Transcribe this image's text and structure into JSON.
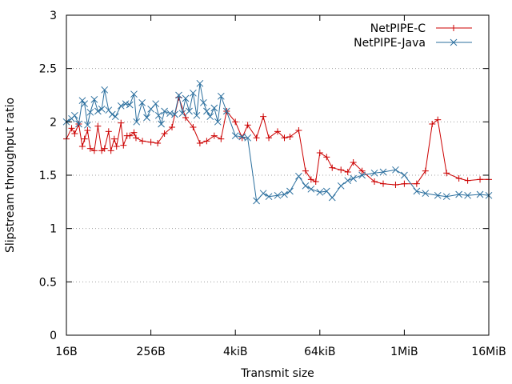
{
  "chart_data": {
    "type": "line",
    "title": "",
    "xlabel": "Transmit size",
    "ylabel": "Slipstream throughput ratio",
    "x_scale": "log2",
    "x_range_bytes": [
      16,
      16777216
    ],
    "ylim": [
      0,
      3
    ],
    "x_ticks": [
      {
        "value": 16,
        "label": "16B"
      },
      {
        "value": 256,
        "label": "256B"
      },
      {
        "value": 4096,
        "label": "4kiB"
      },
      {
        "value": 65536,
        "label": "64kiB"
      },
      {
        "value": 1048576,
        "label": "1MiB"
      },
      {
        "value": 16777216,
        "label": "16MiB"
      }
    ],
    "y_ticks": [
      {
        "value": 0,
        "label": "0"
      },
      {
        "value": 0.5,
        "label": "0.5"
      },
      {
        "value": 1,
        "label": "1"
      },
      {
        "value": 1.5,
        "label": "1.5"
      },
      {
        "value": 2,
        "label": "2"
      },
      {
        "value": 2.5,
        "label": "2.5"
      },
      {
        "value": 3,
        "label": "3"
      }
    ],
    "grid": true,
    "legend_position": "top-right",
    "series": [
      {
        "name": "NetPIPE-C",
        "color": "#cc0000",
        "marker": "plus",
        "points": [
          [
            16,
            1.84
          ],
          [
            19,
            1.94
          ],
          [
            21,
            1.89
          ],
          [
            24,
            1.98
          ],
          [
            27,
            1.77
          ],
          [
            29,
            1.84
          ],
          [
            32,
            1.92
          ],
          [
            35,
            1.75
          ],
          [
            40,
            1.73
          ],
          [
            45,
            1.96
          ],
          [
            51,
            1.73
          ],
          [
            56,
            1.75
          ],
          [
            64,
            1.91
          ],
          [
            69,
            1.73
          ],
          [
            77,
            1.84
          ],
          [
            83,
            1.77
          ],
          [
            96,
            1.99
          ],
          [
            104,
            1.78
          ],
          [
            117,
            1.87
          ],
          [
            128,
            1.87
          ],
          [
            147,
            1.9
          ],
          [
            157,
            1.85
          ],
          [
            194,
            1.82
          ],
          [
            256,
            1.81
          ],
          [
            320,
            1.8
          ],
          [
            400,
            1.89
          ],
          [
            512,
            1.95
          ],
          [
            640,
            2.23
          ],
          [
            800,
            2.04
          ],
          [
            1024,
            1.95
          ],
          [
            1280,
            1.8
          ],
          [
            1600,
            1.82
          ],
          [
            2048,
            1.87
          ],
          [
            2560,
            1.84
          ],
          [
            3072,
            2.1
          ],
          [
            4096,
            2.0
          ],
          [
            5120,
            1.85
          ],
          [
            6144,
            1.97
          ],
          [
            8192,
            1.85
          ],
          [
            10240,
            2.05
          ],
          [
            12288,
            1.85
          ],
          [
            16384,
            1.91
          ],
          [
            20480,
            1.85
          ],
          [
            24576,
            1.86
          ],
          [
            32768,
            1.92
          ],
          [
            40960,
            1.54
          ],
          [
            49152,
            1.46
          ],
          [
            57344,
            1.44
          ],
          [
            65536,
            1.71
          ],
          [
            81920,
            1.67
          ],
          [
            98304,
            1.57
          ],
          [
            131072,
            1.55
          ],
          [
            163840,
            1.53
          ],
          [
            196608,
            1.62
          ],
          [
            262144,
            1.54
          ],
          [
            393216,
            1.44
          ],
          [
            524288,
            1.42
          ],
          [
            786432,
            1.41
          ],
          [
            1048576,
            1.42
          ],
          [
            1572864,
            1.42
          ],
          [
            2097152,
            1.54
          ],
          [
            2621440,
            1.98
          ],
          [
            3145728,
            2.02
          ],
          [
            4194304,
            1.52
          ],
          [
            6291456,
            1.47
          ],
          [
            8388608,
            1.45
          ],
          [
            12582912,
            1.46
          ],
          [
            16777216,
            1.46
          ]
        ]
      },
      {
        "name": "NetPIPE-Java",
        "color": "#2b6f9e",
        "marker": "x",
        "points": [
          [
            16,
            2.0
          ],
          [
            19,
            2.03
          ],
          [
            21,
            2.06
          ],
          [
            24,
            1.98
          ],
          [
            27,
            2.2
          ],
          [
            29,
            2.17
          ],
          [
            32,
            1.97
          ],
          [
            35,
            2.09
          ],
          [
            40,
            2.21
          ],
          [
            45,
            2.1
          ],
          [
            51,
            2.12
          ],
          [
            56,
            2.3
          ],
          [
            64,
            2.11
          ],
          [
            72,
            2.07
          ],
          [
            80,
            2.05
          ],
          [
            96,
            2.15
          ],
          [
            112,
            2.17
          ],
          [
            128,
            2.16
          ],
          [
            147,
            2.26
          ],
          [
            160,
            2.0
          ],
          [
            192,
            2.18
          ],
          [
            224,
            2.04
          ],
          [
            256,
            2.12
          ],
          [
            300,
            2.17
          ],
          [
            330,
            2.06
          ],
          [
            360,
            1.98
          ],
          [
            400,
            2.1
          ],
          [
            480,
            2.08
          ],
          [
            560,
            2.07
          ],
          [
            640,
            2.25
          ],
          [
            720,
            2.08
          ],
          [
            800,
            2.22
          ],
          [
            900,
            2.1
          ],
          [
            1024,
            2.27
          ],
          [
            1152,
            2.06
          ],
          [
            1280,
            2.36
          ],
          [
            1440,
            2.18
          ],
          [
            1600,
            2.1
          ],
          [
            1792,
            2.05
          ],
          [
            2048,
            2.13
          ],
          [
            2304,
            2.0
          ],
          [
            2560,
            2.24
          ],
          [
            3072,
            2.1
          ],
          [
            4096,
            1.87
          ],
          [
            5120,
            1.86
          ],
          [
            6144,
            1.85
          ],
          [
            8192,
            1.26
          ],
          [
            10240,
            1.33
          ],
          [
            12288,
            1.3
          ],
          [
            16384,
            1.31
          ],
          [
            20480,
            1.32
          ],
          [
            24576,
            1.35
          ],
          [
            32768,
            1.49
          ],
          [
            40960,
            1.4
          ],
          [
            49152,
            1.37
          ],
          [
            65536,
            1.34
          ],
          [
            81920,
            1.35
          ],
          [
            98304,
            1.29
          ],
          [
            131072,
            1.4
          ],
          [
            163840,
            1.45
          ],
          [
            196608,
            1.47
          ],
          [
            262144,
            1.5
          ],
          [
            393216,
            1.52
          ],
          [
            524288,
            1.53
          ],
          [
            786432,
            1.55
          ],
          [
            1048576,
            1.5
          ],
          [
            1572864,
            1.35
          ],
          [
            2097152,
            1.33
          ],
          [
            3145728,
            1.31
          ],
          [
            4194304,
            1.3
          ],
          [
            6291456,
            1.32
          ],
          [
            8388608,
            1.31
          ],
          [
            12582912,
            1.32
          ],
          [
            16777216,
            1.31
          ]
        ]
      }
    ]
  }
}
